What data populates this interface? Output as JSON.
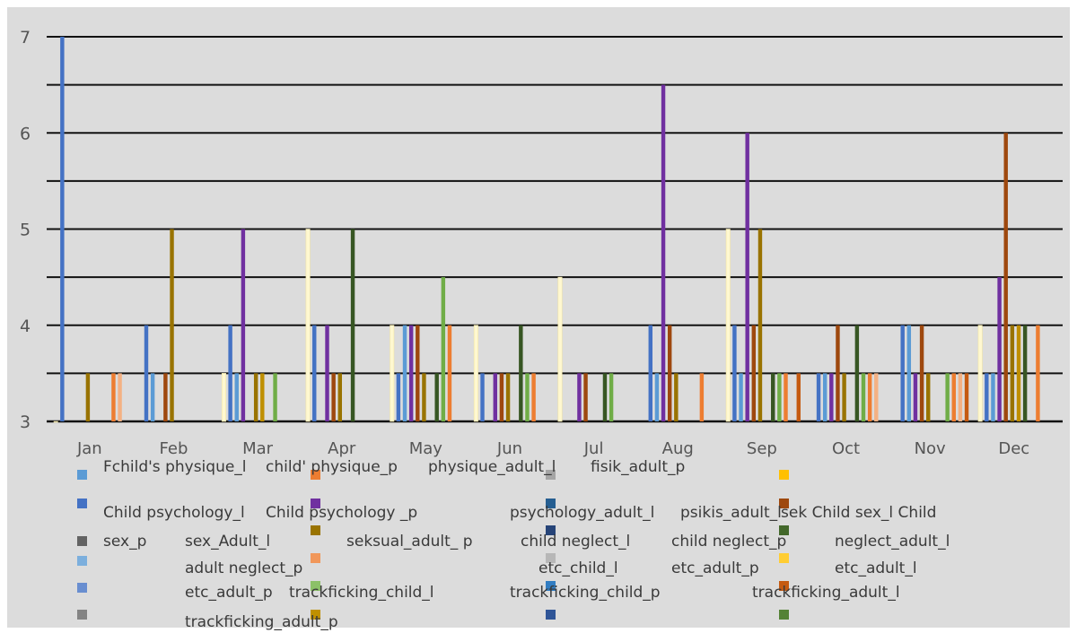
{
  "chart_data": {
    "type": "bar",
    "categories": [
      "Jan",
      "Feb",
      "Mar",
      "Apr",
      "May",
      "Jun",
      "Jul",
      "Aug",
      "Sep",
      "Oct",
      "Nov",
      "Dec"
    ],
    "y_ticks": [
      3,
      4,
      5,
      6,
      7
    ],
    "ylim": [
      3,
      7
    ],
    "grid": true,
    "legend_position": "bottom",
    "colors": {
      "background": "#dcdcdc",
      "page": "#ffffff",
      "gridline": "#111111",
      "axis_text": "#555555"
    },
    "series": [
      {
        "color": "#fff8d0",
        "points": [
          [
            "Jan",
            3
          ],
          [
            "Mar",
            3.5
          ],
          [
            "Apr",
            5
          ],
          [
            "May",
            4
          ],
          [
            "Jun",
            4
          ],
          [
            "Jul",
            4.5
          ],
          [
            "Sep",
            5
          ],
          [
            "Dec",
            4
          ]
        ]
      },
      {
        "color": "#4472c4",
        "points": [
          [
            "Jan",
            7
          ],
          [
            "Feb",
            4
          ],
          [
            "Mar",
            4
          ],
          [
            "Apr",
            4
          ],
          [
            "May",
            3.5
          ],
          [
            "Jun",
            3.5
          ],
          [
            "Aug",
            4
          ],
          [
            "Sep",
            4
          ],
          [
            "Oct",
            3.5
          ],
          [
            "Nov",
            4
          ],
          [
            "Dec",
            3.5
          ]
        ]
      },
      {
        "color": "#5b9bd5",
        "points": [
          [
            "Feb",
            3.5
          ],
          [
            "Mar",
            3.5
          ],
          [
            "May",
            4
          ],
          [
            "Aug",
            3.5
          ],
          [
            "Sep",
            3.5
          ],
          [
            "Oct",
            3.5
          ],
          [
            "Nov",
            4
          ],
          [
            "Dec",
            3.5
          ]
        ]
      },
      {
        "color": "#7030a0",
        "points": [
          [
            "Mar",
            5
          ],
          [
            "Apr",
            4
          ],
          [
            "May",
            4
          ],
          [
            "Jun",
            3.5
          ],
          [
            "Jul",
            3.5
          ],
          [
            "Aug",
            6.5
          ],
          [
            "Sep",
            6
          ],
          [
            "Oct",
            3.5
          ],
          [
            "Nov",
            3.5
          ],
          [
            "Dec",
            4.5
          ]
        ]
      },
      {
        "color": "#9e480e",
        "points": [
          [
            "Feb",
            3.5
          ],
          [
            "Apr",
            3.5
          ],
          [
            "May",
            4
          ],
          [
            "Jun",
            3.5
          ],
          [
            "Jul",
            3.5
          ],
          [
            "Aug",
            4
          ],
          [
            "Sep",
            4
          ],
          [
            "Oct",
            4
          ],
          [
            "Nov",
            4
          ],
          [
            "Dec",
            6
          ]
        ]
      },
      {
        "color": "#997300",
        "points": [
          [
            "Jan",
            3.5
          ],
          [
            "Feb",
            5
          ],
          [
            "Mar",
            3.5
          ],
          [
            "Apr",
            3.5
          ],
          [
            "May",
            3.5
          ],
          [
            "Jun",
            3.5
          ],
          [
            "Aug",
            3.5
          ],
          [
            "Sep",
            5
          ],
          [
            "Oct",
            3.5
          ],
          [
            "Nov",
            3.5
          ],
          [
            "Dec",
            4
          ]
        ]
      },
      {
        "color": "#bf8f00",
        "points": [
          [
            "Mar",
            3.5
          ],
          [
            "Dec",
            4
          ]
        ]
      },
      {
        "color": "#375623",
        "points": [
          [
            "Apr",
            5
          ],
          [
            "May",
            3.5
          ],
          [
            "Jun",
            4
          ],
          [
            "Jul",
            3.5
          ],
          [
            "Sep",
            3.5
          ],
          [
            "Oct",
            4
          ],
          [
            "Dec",
            4
          ]
        ]
      },
      {
        "color": "#70ad47",
        "points": [
          [
            "Mar",
            3.5
          ],
          [
            "May",
            4.5
          ],
          [
            "Jun",
            3.5
          ],
          [
            "Jul",
            3.5
          ],
          [
            "Sep",
            3.5
          ],
          [
            "Oct",
            3.5
          ],
          [
            "Nov",
            3.5
          ]
        ]
      },
      {
        "color": "#ed7d31",
        "points": [
          [
            "Jan",
            3.5
          ],
          [
            "May",
            4
          ],
          [
            "Jun",
            3.5
          ],
          [
            "Aug",
            3.5
          ],
          [
            "Sep",
            3.5
          ],
          [
            "Oct",
            3.5
          ],
          [
            "Nov",
            3.5
          ],
          [
            "Dec",
            4
          ]
        ]
      },
      {
        "color": "#f4b183",
        "points": [
          [
            "Jan",
            3.5
          ],
          [
            "Oct",
            3.5
          ],
          [
            "Nov",
            3.5
          ]
        ]
      },
      {
        "color": "#c55a11",
        "points": [
          [
            "Sep",
            3.5
          ],
          [
            "Nov",
            3.5
          ]
        ]
      }
    ]
  },
  "legend": {
    "entries": [
      {
        "text": "Fchild's physique_l",
        "color": "#5b9bd5"
      },
      {
        "text": "child' physique_p",
        "color": "#ed7d31"
      },
      {
        "text": "physique_adult_l",
        "color": "#a5a5a5"
      },
      {
        "text": "fisik_adult_p",
        "color": ""
      },
      {
        "text": "",
        "color": "#ffc000"
      },
      {
        "text": "",
        "color": "#4472c4"
      },
      {
        "text": "",
        "color": "#7030a0"
      },
      {
        "text": "",
        "color": "#255e91"
      },
      {
        "text": "",
        "color": "#9e480e"
      },
      {
        "text": "Child psychology_l",
        "color": ""
      },
      {
        "text": "Child psychology _p",
        "color": ""
      },
      {
        "text": "psychology_adult_l",
        "color": ""
      },
      {
        "text": "psikis_adult_l",
        "color": ""
      },
      {
        "text": "sek Child sex_l Child",
        "color": ""
      },
      {
        "text": "",
        "color": "#636363"
      },
      {
        "text": "",
        "color": "#264478"
      },
      {
        "text": "",
        "color": "#43682b"
      },
      {
        "text": "sex_p",
        "color": ""
      },
      {
        "text": "sex_Adult_l",
        "color": ""
      },
      {
        "text": "seksual_adult_ p",
        "color": "#997300"
      },
      {
        "text": "child neglect_l",
        "color": ""
      },
      {
        "text": "child neglect_p",
        "color": ""
      },
      {
        "text": "neglect_adult_l",
        "color": ""
      },
      {
        "text": "",
        "color": "#7cafdd"
      },
      {
        "text": "adult neglect_p",
        "color": "#f1975a"
      },
      {
        "text": "etc_child_l",
        "color": "#b7b7b7"
      },
      {
        "text": "etc_adult_p",
        "color": "#ffcd33"
      },
      {
        "text": "etc_adult_l",
        "color": ""
      },
      {
        "text": "",
        "color": "#698ed0"
      },
      {
        "text": "etc_adult_p",
        "color": ""
      },
      {
        "text": "trackficking_child_l",
        "color": "#8cc168"
      },
      {
        "text": "trackficking_child_p",
        "color": "#327dc2"
      },
      {
        "text": "trackficking_adult_l",
        "color": "#c55a11"
      },
      {
        "text": "",
        "color": "#848484"
      },
      {
        "text": "trackficking_adult_p",
        "color": "#bf9000"
      },
      {
        "text": "",
        "color": "#2f5597"
      },
      {
        "text": "",
        "color": "#548235"
      }
    ]
  }
}
